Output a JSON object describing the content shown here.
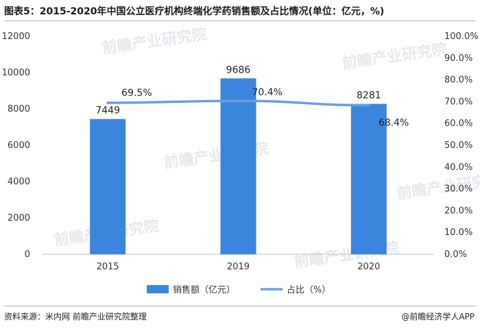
{
  "title": "图表5：2015-2020年中国公立医疗机构终端化学药销售额及占比情况(单位：亿元，%)",
  "source": "资料来源：米内网 前瞻产业研究院整理",
  "brand": "@前瞻经济学人APP",
  "watermark": "前瞻产业研究院",
  "colors": {
    "bar": "#3c85de",
    "line": "#6a9ee0",
    "axis": "#bfbfbf"
  },
  "chart_data": {
    "type": "bar",
    "categories": [
      "2015",
      "2019",
      "2020"
    ],
    "series": [
      {
        "name": "销售额（亿元）",
        "type": "bar",
        "axis": "left",
        "values": [
          7449,
          9686,
          8281
        ],
        "labels": [
          "7449",
          "9686",
          "8281"
        ]
      },
      {
        "name": "占比（%）",
        "type": "line",
        "axis": "right",
        "values": [
          69.5,
          70.4,
          68.4
        ],
        "labels": [
          "69.5%",
          "70.4%",
          "68.4%"
        ]
      }
    ],
    "y_left": {
      "min": 0,
      "max": 12000,
      "ticks": [
        "0",
        "2000",
        "4000",
        "6000",
        "8000",
        "10000",
        "12000"
      ]
    },
    "y_right": {
      "min": 0,
      "max": 100,
      "ticks": [
        "0.0%",
        "10.0%",
        "20.0%",
        "30.0%",
        "40.0%",
        "50.0%",
        "60.0%",
        "70.0%",
        "80.0%",
        "90.0%",
        "100.0%"
      ]
    },
    "grid": false,
    "legend": "bottom"
  }
}
